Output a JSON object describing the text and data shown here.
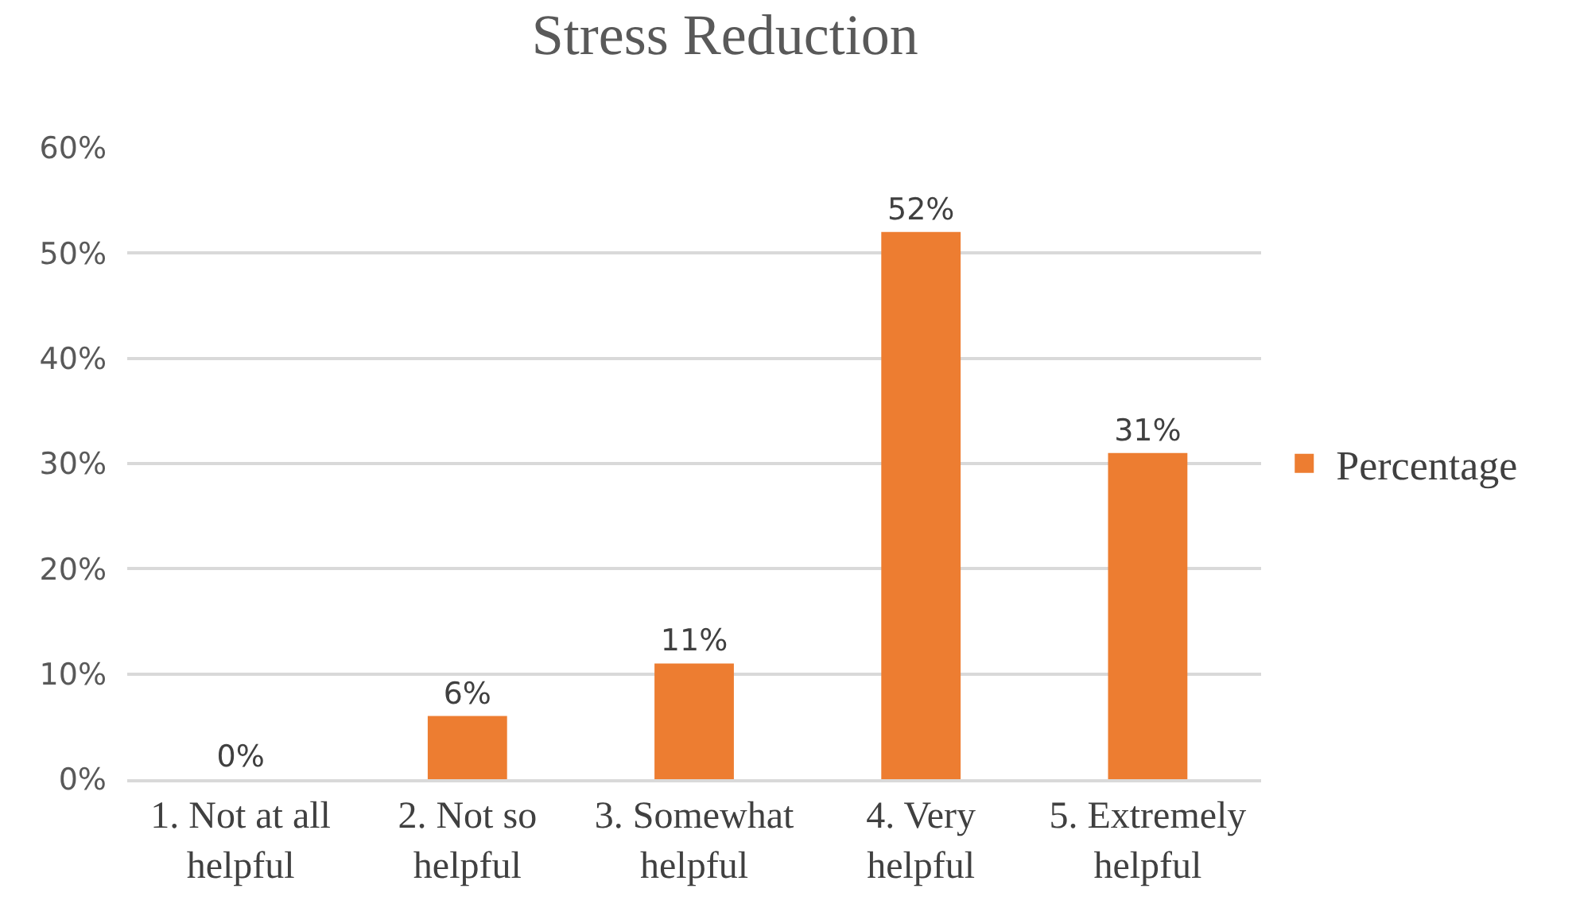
{
  "chart_data": {
    "type": "bar",
    "title": "Stress Reduction",
    "categories": [
      "1. Not at all helpful",
      "2. Not so helpful",
      "3. Somewhat helpful",
      "4. Very helpful",
      "5. Extremely helpful"
    ],
    "series": [
      {
        "name": "Percentage",
        "color": "#ed7d31",
        "values": [
          0,
          6,
          11,
          52,
          31
        ],
        "value_labels": [
          "0%",
          "6%",
          "11%",
          "52%",
          "31%"
        ]
      }
    ],
    "ylim": [
      0,
      60
    ],
    "yticks": [
      {
        "value": 0,
        "label": "0%"
      },
      {
        "value": 10,
        "label": "10%"
      },
      {
        "value": 20,
        "label": "20%"
      },
      {
        "value": 30,
        "label": "30%"
      },
      {
        "value": 40,
        "label": "40%"
      },
      {
        "value": 50,
        "label": "50%"
      },
      {
        "value": 60,
        "label": "60%"
      }
    ],
    "grid": "y",
    "legend": "right"
  }
}
